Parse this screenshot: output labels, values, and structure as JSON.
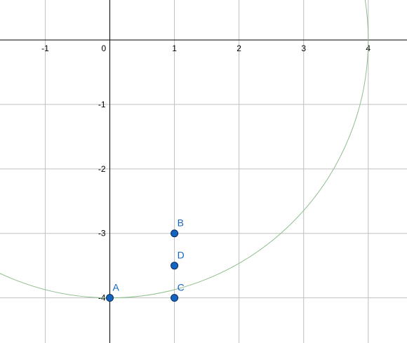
{
  "view": {
    "x_range": [
      -1.7,
      4.6
    ],
    "y_range": [
      -4.7,
      0.62
    ],
    "grid_step": 1
  },
  "axes": {
    "x_ticks": [
      {
        "value": -1,
        "label": "-1"
      },
      {
        "value": 0,
        "label": "0"
      },
      {
        "value": 1,
        "label": "1"
      },
      {
        "value": 2,
        "label": "2"
      },
      {
        "value": 3,
        "label": "3"
      },
      {
        "value": 4,
        "label": "4"
      }
    ],
    "y_ticks": [
      {
        "value": -1,
        "label": "-1"
      },
      {
        "value": -2,
        "label": "-2"
      },
      {
        "value": -3,
        "label": "-3"
      },
      {
        "value": -4,
        "label": "-4"
      }
    ]
  },
  "circle": {
    "center": [
      0,
      0
    ],
    "radius": 4,
    "color": "#8fbf8f"
  },
  "points": [
    {
      "name": "A",
      "x": 0,
      "y": -4
    },
    {
      "name": "B",
      "x": 1,
      "y": -3
    },
    {
      "name": "C",
      "x": 1,
      "y": -4
    },
    {
      "name": "D",
      "x": 1,
      "y": -3.5
    }
  ],
  "colors": {
    "grid": "#c0c0c0",
    "axis": "#000000",
    "point_fill": "#1565c0",
    "point_stroke": "#0a2a5a",
    "label": "#1565c0"
  }
}
